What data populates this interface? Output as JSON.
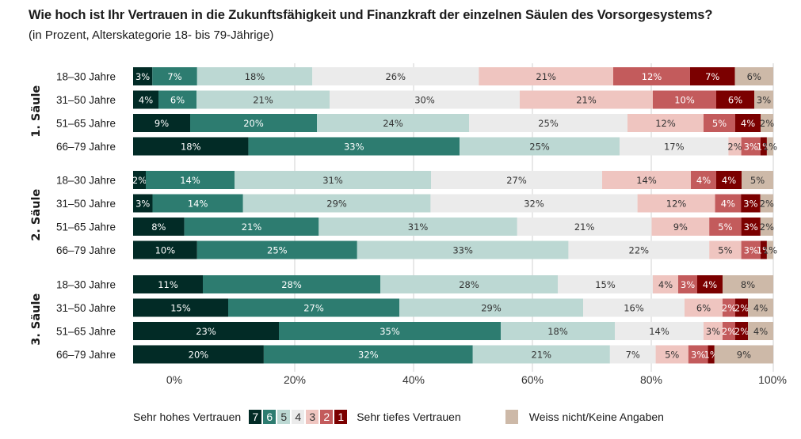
{
  "title": "Wie hoch ist Ihr Vertrauen in die Zukunftsfähigkeit und Finanzkraft der einzelnen Säulen des Vorsorgesystems?",
  "subtitle": "(in Prozent, Alterskategorie 18- bis 79-Jährige)",
  "colors": {
    "7": "#022b26",
    "6": "#2d7c70",
    "5": "#bcd8d3",
    "4": "#ebebeb",
    "3": "#efc5c0",
    "2": "#c35b5c",
    "1": "#7b0000",
    "dk": "#cdb9a8",
    "grid": "#d0d0d0"
  },
  "legend": {
    "high_label": "Sehr hohes Vertrauen",
    "low_label": "Sehr tiefes Vertrauen",
    "dk_label": "Weiss nicht/Keine Angaben",
    "scale": [
      "7",
      "6",
      "5",
      "4",
      "3",
      "2",
      "1"
    ]
  },
  "chart_data": {
    "type": "bar",
    "orientation": "horizontal-stacked-100",
    "title": "Wie hoch ist Ihr Vertrauen in die Zukunftsfähigkeit und Finanzkraft der einzelnen Säulen des Vorsorgesystems?",
    "subtitle": "(in Prozent, Alterskategorie 18- bis 79-Jährige)",
    "xlabel": "",
    "ylabel": "",
    "xlim": [
      0,
      100
    ],
    "x_ticks": [
      "0%",
      "20%",
      "40%",
      "60%",
      "80%",
      "100%"
    ],
    "grid": true,
    "legend_position": "bottom",
    "series_names": [
      "7",
      "6",
      "5",
      "4",
      "3",
      "2",
      "1",
      "Weiss nicht/Keine Angaben"
    ],
    "groups": [
      {
        "name": "1. Säule",
        "rows": [
          {
            "label": "18–30 Jahre",
            "values": [
              3,
              7,
              18,
              26,
              21,
              12,
              7,
              6
            ]
          },
          {
            "label": "31–50 Jahre",
            "values": [
              4,
              6,
              21,
              30,
              21,
              10,
              6,
              3
            ]
          },
          {
            "label": "51–65 Jahre",
            "values": [
              9,
              20,
              24,
              25,
              12,
              5,
              4,
              2
            ]
          },
          {
            "label": "66–79 Jahre",
            "values": [
              18,
              33,
              25,
              17,
              2,
              3,
              1,
              1
            ]
          }
        ]
      },
      {
        "name": "2. Säule",
        "rows": [
          {
            "label": "18–30 Jahre",
            "values": [
              2,
              14,
              31,
              27,
              14,
              4,
              4,
              5
            ]
          },
          {
            "label": "31–50 Jahre",
            "values": [
              3,
              14,
              29,
              32,
              12,
              4,
              3,
              2
            ]
          },
          {
            "label": "51–65 Jahre",
            "values": [
              8,
              21,
              31,
              21,
              9,
              5,
              3,
              2
            ]
          },
          {
            "label": "66–79 Jahre",
            "values": [
              10,
              25,
              33,
              22,
              5,
              3,
              1,
              1
            ]
          }
        ]
      },
      {
        "name": "3. Säule",
        "rows": [
          {
            "label": "18–30 Jahre",
            "values": [
              11,
              28,
              28,
              15,
              4,
              3,
              4,
              8
            ]
          },
          {
            "label": "31–50 Jahre",
            "values": [
              15,
              27,
              29,
              16,
              6,
              2,
              2,
              4
            ]
          },
          {
            "label": "51–65 Jahre",
            "values": [
              23,
              35,
              18,
              14,
              3,
              2,
              2,
              4
            ]
          },
          {
            "label": "66–79 Jahre",
            "values": [
              20,
              32,
              21,
              7,
              5,
              3,
              1,
              9
            ]
          }
        ]
      }
    ]
  }
}
